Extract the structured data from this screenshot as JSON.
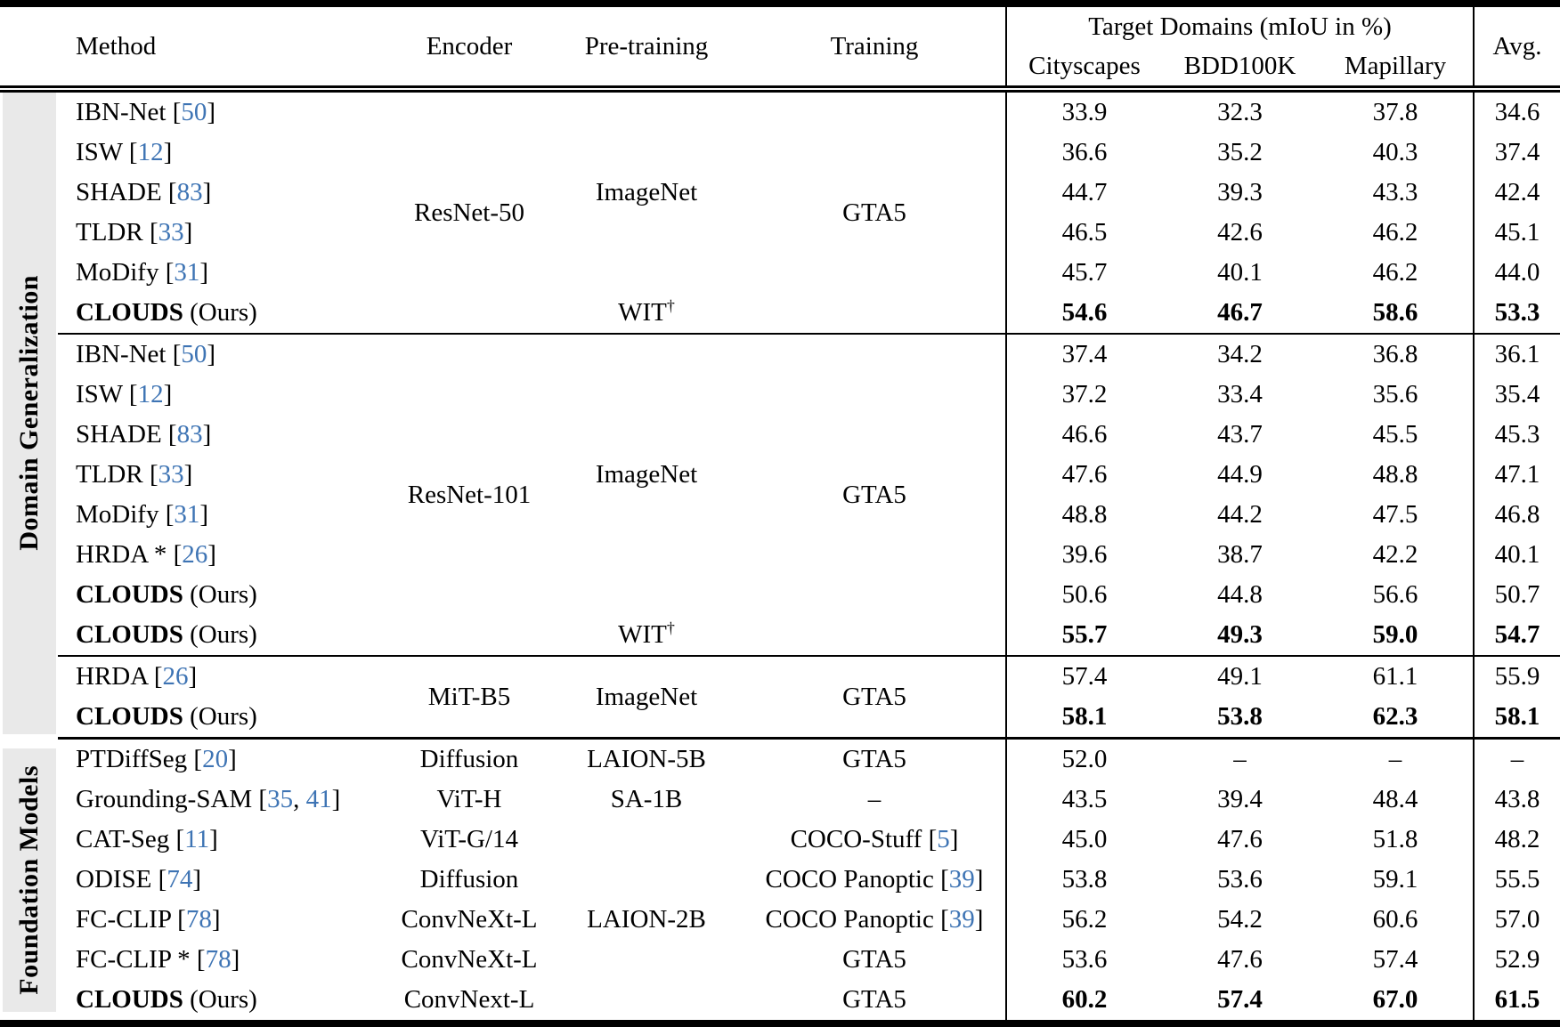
{
  "meta": {
    "citation_color": "#3e74b4",
    "band_color": "#e9e9e9",
    "rule_color": "#000000",
    "cite_open": " [",
    "cite_sep": ", ",
    "cite_close": "]"
  },
  "header": {
    "method": "Method",
    "encoder": "Encoder",
    "pretraining": "Pre-training",
    "training": "Training",
    "target_domains": "Target Domains (mIoU in %)",
    "subcolumns": [
      "Cityscapes",
      "BDD100K",
      "Mapillary"
    ],
    "avg": "Avg."
  },
  "groups": [
    {
      "label": "Domain Generalization",
      "blocks": [
        {
          "rows": [
            {
              "method": {
                "name": "IBN-Net",
                "refs": [
                  "50"
                ]
              },
              "encoder": {
                "span": 6,
                "text": "ResNet-50"
              },
              "pretraining": {
                "span": 5,
                "text": "ImageNet"
              },
              "training": {
                "span": 6,
                "text": "GTA5"
              },
              "values": [
                "33.9",
                "32.3",
                "37.8",
                "34.6"
              ]
            },
            {
              "method": {
                "name": "ISW",
                "refs": [
                  "12"
                ]
              },
              "values": [
                "36.6",
                "35.2",
                "40.3",
                "37.4"
              ]
            },
            {
              "method": {
                "name": "SHADE",
                "refs": [
                  "83"
                ]
              },
              "values": [
                "44.7",
                "39.3",
                "43.3",
                "42.4"
              ]
            },
            {
              "method": {
                "name": "TLDR",
                "refs": [
                  "33"
                ]
              },
              "values": [
                "46.5",
                "42.6",
                "46.2",
                "45.1"
              ]
            },
            {
              "method": {
                "name": "MoDify",
                "refs": [
                  "31"
                ]
              },
              "values": [
                "45.7",
                "40.1",
                "46.2",
                "44.0"
              ]
            },
            {
              "method": {
                "name": "CLOUDS",
                "bold": true,
                "suffix": " (Ours)"
              },
              "pretraining": {
                "span": 1,
                "text": "WIT",
                "sup": "†"
              },
              "values": [
                "54.6",
                "46.7",
                "58.6",
                "53.3"
              ],
              "bold_values": true
            }
          ]
        },
        {
          "rows": [
            {
              "method": {
                "name": "IBN-Net",
                "refs": [
                  "50"
                ]
              },
              "encoder": {
                "span": 8,
                "text": "ResNet-101"
              },
              "pretraining": {
                "span": 7,
                "text": "ImageNet"
              },
              "training": {
                "span": 8,
                "text": "GTA5"
              },
              "values": [
                "37.4",
                "34.2",
                "36.8",
                "36.1"
              ]
            },
            {
              "method": {
                "name": "ISW",
                "refs": [
                  "12"
                ]
              },
              "values": [
                "37.2",
                "33.4",
                "35.6",
                "35.4"
              ]
            },
            {
              "method": {
                "name": "SHADE",
                "refs": [
                  "83"
                ]
              },
              "values": [
                "46.6",
                "43.7",
                "45.5",
                "45.3"
              ]
            },
            {
              "method": {
                "name": "TLDR",
                "refs": [
                  "33"
                ]
              },
              "values": [
                "47.6",
                "44.9",
                "48.8",
                "47.1"
              ]
            },
            {
              "method": {
                "name": "MoDify",
                "refs": [
                  "31"
                ]
              },
              "values": [
                "48.8",
                "44.2",
                "47.5",
                "46.8"
              ]
            },
            {
              "method": {
                "name": "HRDA *",
                "refs": [
                  "26"
                ]
              },
              "values": [
                "39.6",
                "38.7",
                "42.2",
                "40.1"
              ]
            },
            {
              "method": {
                "name": "CLOUDS",
                "bold": true,
                "suffix": " (Ours)"
              },
              "values": [
                "50.6",
                "44.8",
                "56.6",
                "50.7"
              ]
            },
            {
              "method": {
                "name": "CLOUDS",
                "bold": true,
                "suffix": " (Ours)"
              },
              "pretraining": {
                "span": 1,
                "text": "WIT",
                "sup": "†"
              },
              "values": [
                "55.7",
                "49.3",
                "59.0",
                "54.7"
              ],
              "bold_values": true
            }
          ]
        },
        {
          "rows": [
            {
              "method": {
                "name": "HRDA",
                "refs": [
                  "26"
                ]
              },
              "encoder": {
                "span": 2,
                "text": "MiT-B5"
              },
              "pretraining": {
                "span": 2,
                "text": "ImageNet"
              },
              "training": {
                "span": 2,
                "text": "GTA5"
              },
              "values": [
                "57.4",
                "49.1",
                "61.1",
                "55.9"
              ]
            },
            {
              "method": {
                "name": "CLOUDS",
                "bold": true,
                "suffix": " (Ours)"
              },
              "values": [
                "58.1",
                "53.8",
                "62.3",
                "58.1"
              ],
              "bold_values": true
            }
          ]
        }
      ]
    },
    {
      "label": "Foundation Models",
      "blocks": [
        {
          "rows": [
            {
              "method": {
                "name": "PTDiffSeg",
                "refs": [
                  "20"
                ]
              },
              "encoder": {
                "span": 1,
                "text": "Diffusion"
              },
              "pretraining": {
                "span": 1,
                "text": "LAION-5B"
              },
              "training": {
                "span": 1,
                "text": "GTA5"
              },
              "values": [
                "52.0",
                "–",
                "–",
                "–"
              ]
            },
            {
              "method": {
                "name": "Grounding-SAM",
                "refs": [
                  "35",
                  "41"
                ]
              },
              "encoder": {
                "span": 1,
                "text": "ViT-H"
              },
              "pretraining": {
                "span": 1,
                "text": "SA-1B"
              },
              "training": {
                "span": 1,
                "text": "–"
              },
              "values": [
                "43.5",
                "39.4",
                "48.4",
                "43.8"
              ]
            },
            {
              "method": {
                "name": "CAT-Seg",
                "refs": [
                  "11"
                ]
              },
              "encoder": {
                "span": 1,
                "text": "ViT-G/14"
              },
              "pretraining": {
                "span": 5,
                "text": "LAION-2B"
              },
              "training": {
                "span": 1,
                "text": "COCO-Stuff",
                "refs": [
                  "5"
                ]
              },
              "values": [
                "45.0",
                "47.6",
                "51.8",
                "48.2"
              ]
            },
            {
              "method": {
                "name": "ODISE",
                "refs": [
                  "74"
                ]
              },
              "encoder": {
                "span": 1,
                "text": "Diffusion"
              },
              "training": {
                "span": 1,
                "text": "COCO Panoptic",
                "refs": [
                  "39"
                ]
              },
              "values": [
                "53.8",
                "53.6",
                "59.1",
                "55.5"
              ]
            },
            {
              "method": {
                "name": "FC-CLIP",
                "refs": [
                  "78"
                ]
              },
              "encoder": {
                "span": 1,
                "text": "ConvNeXt-L"
              },
              "training": {
                "span": 1,
                "text": "COCO Panoptic",
                "refs": [
                  "39"
                ]
              },
              "values": [
                "56.2",
                "54.2",
                "60.6",
                "57.0"
              ]
            },
            {
              "method": {
                "name": "FC-CLIP *",
                "refs": [
                  "78"
                ]
              },
              "encoder": {
                "span": 1,
                "text": "ConvNeXt-L"
              },
              "training": {
                "span": 1,
                "text": "GTA5"
              },
              "values": [
                "53.6",
                "47.6",
                "57.4",
                "52.9"
              ]
            },
            {
              "method": {
                "name": "CLOUDS",
                "bold": true,
                "suffix": " (Ours)"
              },
              "encoder": {
                "span": 1,
                "text": "ConvNext-L"
              },
              "training": {
                "span": 1,
                "text": "GTA5"
              },
              "values": [
                "60.2",
                "57.4",
                "67.0",
                "61.5"
              ],
              "bold_values": true
            }
          ]
        }
      ]
    }
  ]
}
